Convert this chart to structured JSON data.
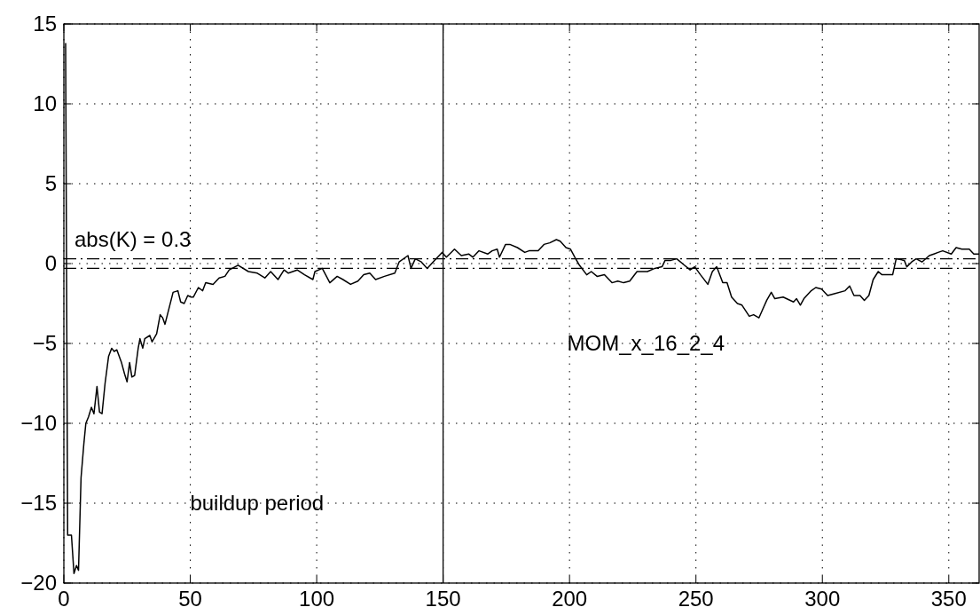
{
  "chart_data": {
    "type": "line",
    "x": [
      0.7,
      1.5,
      3,
      4,
      5,
      5.8,
      6.8,
      7.9,
      8.7,
      9.75,
      10.9,
      11.9,
      13.1,
      14.1,
      15.1,
      16.3,
      17.7,
      18.9,
      19.9,
      20.95,
      22.8,
      24,
      25,
      26,
      26.9,
      28,
      29.4,
      30.1,
      31.2,
      32,
      34,
      34.9,
      36.7,
      38.1,
      39.1,
      40,
      43.2,
      45.1,
      46.2,
      47.6,
      49,
      50.3,
      51.2,
      53.2,
      54.9,
      56.1,
      59,
      61.4,
      63.7,
      65.4,
      68.9,
      73,
      76.5,
      79.5,
      81.8,
      84.7,
      87.1,
      88.8,
      92.3,
      95.2,
      98.5,
      99.3,
      102.2,
      105.2,
      108.1,
      110.4,
      113.4,
      116.3,
      118.6,
      121,
      123.3,
      126.8,
      130.9,
      132.6,
      136.1,
      137.3,
      139,
      141.4,
      143.7,
      146.6,
      149.6,
      151.3,
      154.5,
      157.2,
      160.1,
      161.8,
      164.2,
      167.7,
      169.4,
      171.4,
      172.3,
      174.7,
      176.4,
      179.4,
      182.3,
      184,
      187.6,
      189.9,
      192.2,
      194.8,
      196.3,
      198.6,
      200.4,
      202.1,
      203.9,
      206.8,
      208.6,
      210.9,
      213.8,
      216.8,
      219.1,
      221.4,
      223.8,
      226.7,
      230.8,
      233.7,
      236.6,
      237.8,
      240.1,
      242.4,
      245.4,
      247.7,
      249.5,
      251.8,
      254.7,
      256.5,
      258.2,
      260.6,
      262.3,
      264.1,
      266.4,
      268.2,
      271.1,
      272.8,
      274.9,
      276.3,
      278,
      279.8,
      281.2,
      284.5,
      288.6,
      289.8,
      291.3,
      292.7,
      295.6,
      297.4,
      299.7,
      302.1,
      304.4,
      309,
      310.8,
      312.5,
      314.9,
      316.6,
      318.4,
      320.1,
      322.1,
      323.6,
      327.8,
      329.2,
      332.4,
      333.4,
      335.3,
      337.1,
      339.4,
      342.3,
      344.1,
      345.8,
      347.6,
      351,
      352.9,
      355.2,
      358.1,
      359.9,
      362
    ],
    "series": [
      {
        "name": "MOM_x_16_2_4",
        "color": "#000000",
        "values": [
          13.8,
          -17,
          -17,
          -19.4,
          -18.9,
          -19.2,
          -13.4,
          -11.3,
          -10,
          -9.6,
          -9,
          -9.4,
          -7.7,
          -9.3,
          -9.4,
          -7.5,
          -5.8,
          -5.3,
          -5.5,
          -5.4,
          -6.2,
          -6.9,
          -7.4,
          -6.2,
          -7.1,
          -7,
          -5.3,
          -4.7,
          -5.3,
          -4.7,
          -4.5,
          -4.9,
          -4.4,
          -3.2,
          -3.4,
          -3.8,
          -1.8,
          -1.7,
          -2.4,
          -2.5,
          -2,
          -2.1,
          -2.1,
          -1.5,
          -1.7,
          -1.2,
          -1.3,
          -0.9,
          -0.8,
          -0.4,
          -0.1,
          -0.5,
          -0.6,
          -0.9,
          -0.5,
          -1,
          -0.4,
          -0.6,
          -0.4,
          -0.7,
          -1,
          -0.5,
          -0.3,
          -1.2,
          -0.8,
          -1,
          -1.3,
          -1.1,
          -0.7,
          -0.6,
          -1,
          -0.8,
          -0.6,
          0.1,
          0.5,
          -0.3,
          0.3,
          0.1,
          -0.3,
          0.2,
          0.7,
          0.4,
          0.9,
          0.5,
          0.6,
          0.4,
          0.8,
          0.6,
          0.8,
          0.9,
          0.4,
          1.2,
          1.2,
          1,
          0.7,
          0.8,
          0.8,
          1.2,
          1.3,
          1.5,
          1.4,
          1,
          0.9,
          0.4,
          -0.1,
          -0.7,
          -0.5,
          -0.8,
          -0.7,
          -1.2,
          -1.1,
          -1.2,
          -1.1,
          -0.5,
          -0.5,
          -0.3,
          -0.2,
          0.2,
          0.2,
          0.3,
          -0.1,
          -0.4,
          -0.2,
          -0.7,
          -1.3,
          -0.5,
          -0.2,
          -1.2,
          -1.2,
          -2.1,
          -2.5,
          -2.6,
          -3.3,
          -3.2,
          -3.4,
          -2.9,
          -2.3,
          -1.8,
          -2.2,
          -2.1,
          -2.4,
          -2.2,
          -2.6,
          -2.2,
          -1.7,
          -1.5,
          -1.6,
          -2,
          -1.9,
          -1.7,
          -1.4,
          -2,
          -2,
          -2.3,
          -2,
          -1,
          -0.5,
          -0.7,
          -0.7,
          0.3,
          0.2,
          -0.2,
          0.1,
          0.3,
          0.1,
          0.5,
          0.6,
          0.7,
          0.8,
          0.6,
          1,
          0.9,
          0.9,
          0.6,
          0.6
        ]
      }
    ],
    "xlim": [
      0,
      362
    ],
    "ylim": [
      -20,
      15
    ],
    "xticks": [
      0,
      50,
      100,
      150,
      200,
      250,
      300,
      350
    ],
    "yticks": [
      -20,
      -15,
      -10,
      -5,
      0,
      5,
      10,
      15
    ],
    "grid": true,
    "ref_lines": [
      {
        "axis": "y",
        "value": 0.3,
        "label": "abs(K) = 0.3",
        "line_style": "dashdot",
        "color": "#000000"
      },
      {
        "axis": "y",
        "value": -0.3,
        "label": null,
        "line_style": "dashdot",
        "color": "#000000"
      },
      {
        "axis": "x",
        "value": 150,
        "label": null,
        "line_style": "solid",
        "color": "#000000"
      }
    ],
    "annotations": [
      "buildup period"
    ]
  }
}
